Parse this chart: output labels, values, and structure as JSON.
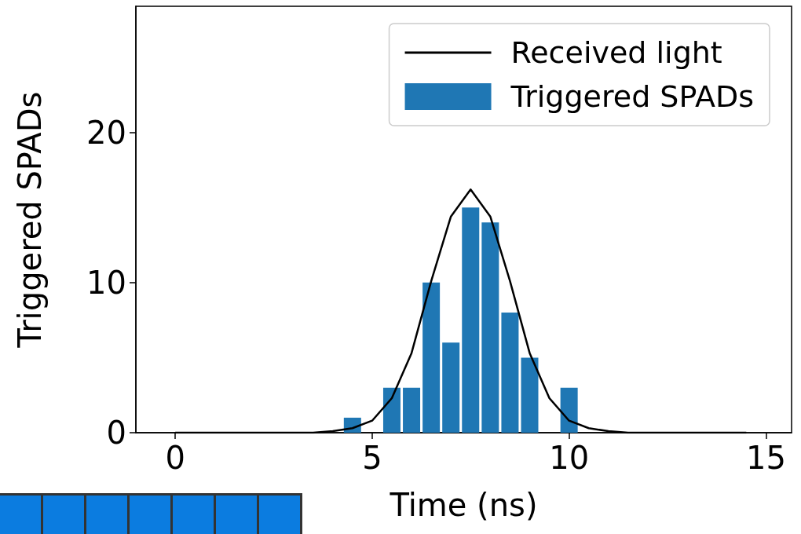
{
  "chart_data": {
    "type": "bar",
    "xlabel": "Time (ns)",
    "ylabel": "Triggered SPADs",
    "xlim": [
      -1,
      15.65
    ],
    "ylim": [
      0,
      28.4
    ],
    "xticks": [
      0,
      5,
      10,
      15
    ],
    "yticks": [
      0,
      10,
      20
    ],
    "legend": "top right",
    "marker": "none",
    "series": [
      {
        "name": "Received light",
        "type": "line",
        "color": "#000000",
        "x": [
          0,
          0.5,
          1,
          1.5,
          2,
          2.5,
          3,
          3.5,
          4,
          4.5,
          5,
          5.5,
          6,
          6.5,
          7,
          7.5,
          8,
          8.5,
          9,
          9.5,
          10,
          10.5,
          11,
          11.5,
          12,
          12.5,
          13,
          13.5,
          14,
          14.5
        ],
        "values": [
          0,
          0,
          0,
          0,
          0,
          0,
          0,
          0,
          0.1,
          0.3,
          0.8,
          2.3,
          5.3,
          10.1,
          14.4,
          16.2,
          14.4,
          10.1,
          5.3,
          2.3,
          0.8,
          0.3,
          0.1,
          0,
          0,
          0,
          0,
          0,
          0,
          0
        ]
      },
      {
        "name": "Triggered SPADs",
        "color": "#1f77b4",
        "x": [
          4.5,
          5.5,
          6,
          6.5,
          7,
          7.5,
          8,
          8.5,
          9,
          10
        ],
        "values": [
          1,
          3,
          3,
          10,
          6,
          15,
          14,
          8,
          5,
          3
        ]
      }
    ]
  }
}
